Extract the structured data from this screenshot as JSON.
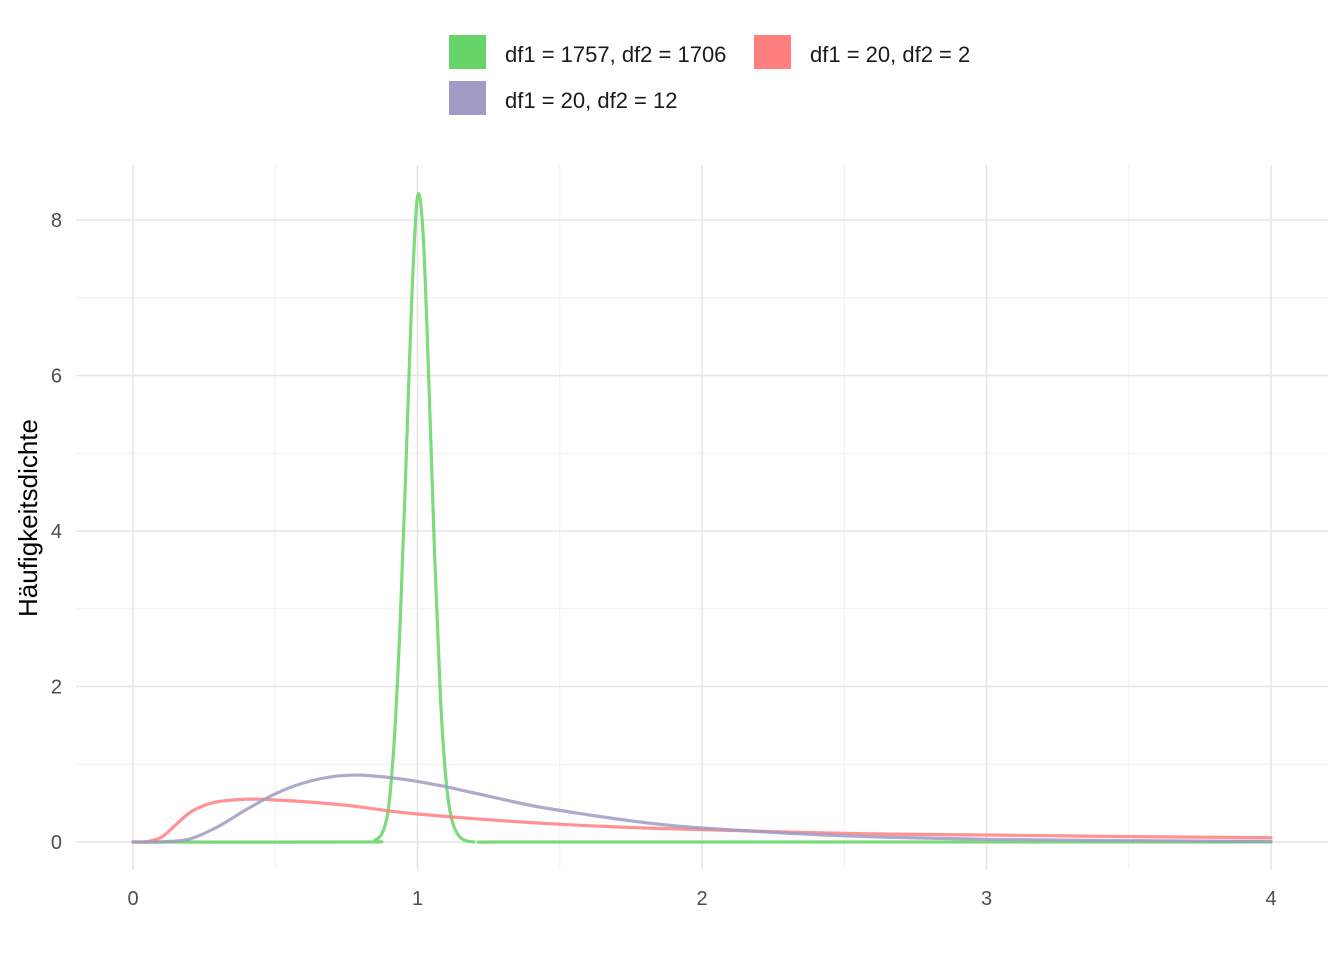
{
  "chart_data": {
    "type": "line",
    "title": "",
    "xlabel": "",
    "ylabel": "Häufigkeitsdichte",
    "xlim": [
      0,
      4
    ],
    "ylim": [
      -0.35,
      8.7
    ],
    "xticks": [
      "0",
      "1",
      "2",
      "3",
      "4"
    ],
    "yticks": [
      "0",
      "2",
      "4",
      "6",
      "8"
    ],
    "grid": true,
    "legend_position": "top",
    "series": [
      {
        "name": "df1 = 1757, df2 = 1706",
        "color": "#66d466",
        "x": [
          0,
          0.8,
          0.85,
          0.88,
          0.9,
          0.92,
          0.94,
          0.96,
          0.98,
          1.0,
          1.02,
          1.04,
          1.06,
          1.08,
          1.1,
          1.12,
          1.15,
          1.2,
          1.3,
          2,
          3,
          4
        ],
        "y": [
          0,
          0,
          0.02,
          0.15,
          0.5,
          1.4,
          2.9,
          4.9,
          7.0,
          8.3,
          7.8,
          5.9,
          3.7,
          1.9,
          0.8,
          0.3,
          0.06,
          0,
          0,
          0,
          0,
          0
        ]
      },
      {
        "name": "df1 = 20, df2 = 2",
        "color": "#ff7f7f",
        "x": [
          0,
          0.05,
          0.1,
          0.15,
          0.2,
          0.25,
          0.3,
          0.35,
          0.4,
          0.45,
          0.5,
          0.6,
          0.7,
          0.8,
          0.9,
          1.0,
          1.2,
          1.4,
          1.6,
          1.8,
          2.0,
          2.5,
          3.0,
          3.5,
          4.0
        ],
        "y": [
          0,
          0.005,
          0.06,
          0.22,
          0.38,
          0.47,
          0.52,
          0.54,
          0.55,
          0.55,
          0.54,
          0.52,
          0.49,
          0.45,
          0.4,
          0.36,
          0.3,
          0.25,
          0.21,
          0.18,
          0.16,
          0.11,
          0.09,
          0.07,
          0.055
        ]
      },
      {
        "name": "df1 = 20, df2 = 12",
        "color": "#9f9bc4",
        "x": [
          0,
          0.1,
          0.2,
          0.3,
          0.4,
          0.5,
          0.6,
          0.7,
          0.8,
          0.9,
          1.0,
          1.1,
          1.2,
          1.4,
          1.6,
          1.8,
          2.0,
          2.5,
          3.0,
          3.5,
          4.0
        ],
        "y": [
          0,
          0.002,
          0.04,
          0.2,
          0.42,
          0.62,
          0.76,
          0.84,
          0.86,
          0.83,
          0.78,
          0.71,
          0.63,
          0.47,
          0.35,
          0.25,
          0.18,
          0.08,
          0.035,
          0.017,
          0.009
        ]
      }
    ]
  }
}
